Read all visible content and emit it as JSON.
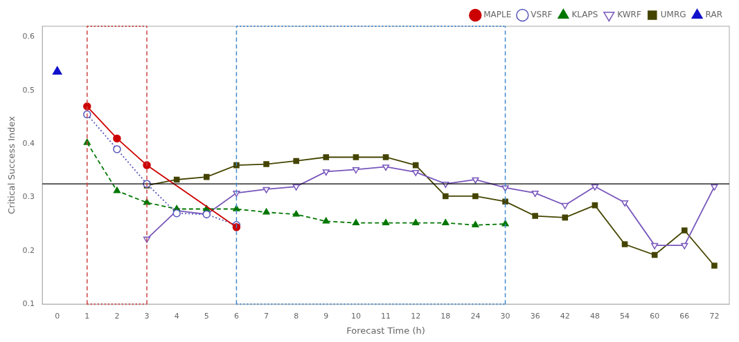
{
  "chart_data": {
    "type": "line",
    "x_label": "Forecast Time (h)",
    "y_label": "Critical Success Index",
    "categories": [
      "0",
      "1",
      "2",
      "3",
      "4",
      "5",
      "6",
      "7",
      "8",
      "9",
      "10",
      "11",
      "12",
      "18",
      "24",
      "30",
      "36",
      "42",
      "48",
      "54",
      "60",
      "66",
      "72"
    ],
    "series": [
      {
        "name": "MAPLE",
        "color": "#cc0000",
        "marker": "circle",
        "line_style": "solid",
        "x": [
          "1",
          "2",
          "3",
          "6"
        ],
        "values": [
          0.47,
          0.41,
          0.36,
          0.244
        ]
      },
      {
        "name": "VSRF",
        "color": "#5555bb",
        "marker": "open_circle",
        "line_style": "dotted",
        "x": [
          "1",
          "2",
          "3",
          "4",
          "5",
          "6"
        ],
        "values": [
          0.455,
          0.39,
          0.325,
          0.27,
          0.268,
          0.248
        ]
      },
      {
        "name": "KLAPS",
        "color": "#007700",
        "marker": "triangle",
        "line_style": "dashed",
        "x": [
          "1",
          "2",
          "3",
          "4",
          "5",
          "6",
          "7",
          "8",
          "9",
          "10",
          "11",
          "12",
          "18",
          "24",
          "30"
        ],
        "values": [
          0.402,
          0.312,
          0.29,
          0.278,
          0.278,
          0.278,
          0.272,
          0.268,
          0.255,
          0.252,
          0.252,
          0.252,
          0.252,
          0.248,
          0.25
        ]
      },
      {
        "name": "KWRF",
        "color": "#7755bb",
        "marker": "open_triangle_down",
        "line_style": "solid",
        "x": [
          "3",
          "4",
          "5",
          "6",
          "7",
          "8",
          "9",
          "10",
          "11",
          "12",
          "18",
          "24",
          "30",
          "36",
          "42",
          "48",
          "54",
          "60",
          "66",
          "72"
        ],
        "values": [
          0.222,
          0.275,
          0.268,
          0.308,
          0.315,
          0.32,
          0.348,
          0.352,
          0.357,
          0.347,
          0.325,
          0.333,
          0.318,
          0.308,
          0.285,
          0.32,
          0.29,
          0.21,
          0.21,
          0.32
        ]
      },
      {
        "name": "UMRG",
        "color": "#444400",
        "marker": "square",
        "line_style": "solid",
        "x": [
          "3",
          "4",
          "5",
          "6",
          "7",
          "8",
          "9",
          "10",
          "11",
          "12",
          "18",
          "24",
          "30",
          "36",
          "42",
          "48",
          "54",
          "60",
          "66",
          "72"
        ],
        "values": [
          0.322,
          0.333,
          0.338,
          0.36,
          0.362,
          0.368,
          0.375,
          0.375,
          0.375,
          0.36,
          0.302,
          0.302,
          0.292,
          0.265,
          0.262,
          0.285,
          0.212,
          0.192,
          0.238,
          0.172
        ]
      },
      {
        "name": "RAR",
        "color": "#1111cc",
        "marker": "triangle",
        "line_style": "none",
        "x": [
          "0"
        ],
        "values": [
          0.535
        ]
      }
    ],
    "ylim": [
      0.1,
      0.62
    ],
    "yticks": [
      0.1,
      0.2,
      0.3,
      0.4,
      0.5,
      0.6
    ],
    "grid": false,
    "legend": "upper right",
    "reference_line": {
      "y": 0.325,
      "color": "#000000"
    },
    "regions": [
      {
        "from": "1",
        "to": "3",
        "color": "#cc4444"
      },
      {
        "from": "6",
        "to": "30",
        "color": "#4488cc"
      }
    ]
  }
}
